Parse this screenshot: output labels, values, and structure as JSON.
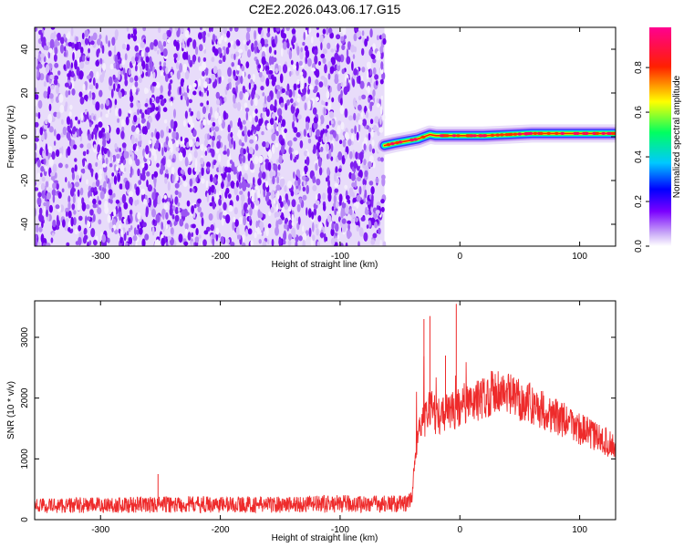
{
  "title": "C2E2.2026.043.06.17.G15",
  "chart_data": [
    {
      "type": "heatmap",
      "xlabel": "Height of straight line (km)",
      "ylabel": "Frequency (Hz)",
      "xlim": [
        -355,
        130
      ],
      "ylim": [
        -50,
        50
      ],
      "xticks": [
        -300,
        -200,
        -100,
        0,
        100
      ],
      "yticks": [
        -40,
        -20,
        0,
        20,
        40
      ],
      "noise_region_x": [
        -355,
        -63
      ],
      "signal_trace": {
        "x": [
          -63,
          -55,
          -45,
          -35,
          -25,
          -20,
          -10,
          0,
          20,
          40,
          60,
          80,
          100,
          130
        ],
        "frequency": [
          -4,
          -3,
          -2,
          -1,
          1,
          0.5,
          0.5,
          0.5,
          0.5,
          1,
          1.5,
          1.5,
          1.5,
          1.5
        ]
      },
      "colorbar": {
        "label": "Normalized spectral amplitude",
        "range": [
          0,
          0.98
        ],
        "ticks": [
          0.0,
          0.2,
          0.4,
          0.6,
          0.8
        ],
        "colors": [
          "#ffffff",
          "#b98cf5",
          "#7a00ff",
          "#0000ff",
          "#00ffff",
          "#00ff00",
          "#ffff00",
          "#ff0000",
          "#ff00a0"
        ]
      }
    },
    {
      "type": "line",
      "xlabel": "Height of straight line (km)",
      "ylabel": "SNR (10 * v/v)",
      "xlim": [
        -355,
        130
      ],
      "ylim": [
        0,
        3600
      ],
      "xticks": [
        -300,
        -200,
        -100,
        0,
        100
      ],
      "yticks": [
        0,
        1000,
        2000,
        3000
      ],
      "color": "#ee2b2b",
      "x": [
        -355,
        -300,
        -250,
        -200,
        -150,
        -100,
        -60,
        -45,
        -40,
        -38,
        -35,
        -30,
        -25,
        -20,
        -10,
        0,
        20,
        30,
        40,
        60,
        80,
        100,
        130
      ],
      "y": [
        230,
        240,
        250,
        250,
        250,
        260,
        260,
        260,
        300,
        950,
        1450,
        1600,
        1900,
        1700,
        1750,
        1850,
        2000,
        2150,
        2050,
        1900,
        1700,
        1500,
        1200
      ],
      "spikes": [
        {
          "x": -252,
          "y": 750
        },
        {
          "x": -30,
          "y": 3300
        },
        {
          "x": -25,
          "y": 3350
        },
        {
          "x": -3,
          "y": 3550
        },
        {
          "x": -12,
          "y": 2700
        }
      ]
    }
  ]
}
